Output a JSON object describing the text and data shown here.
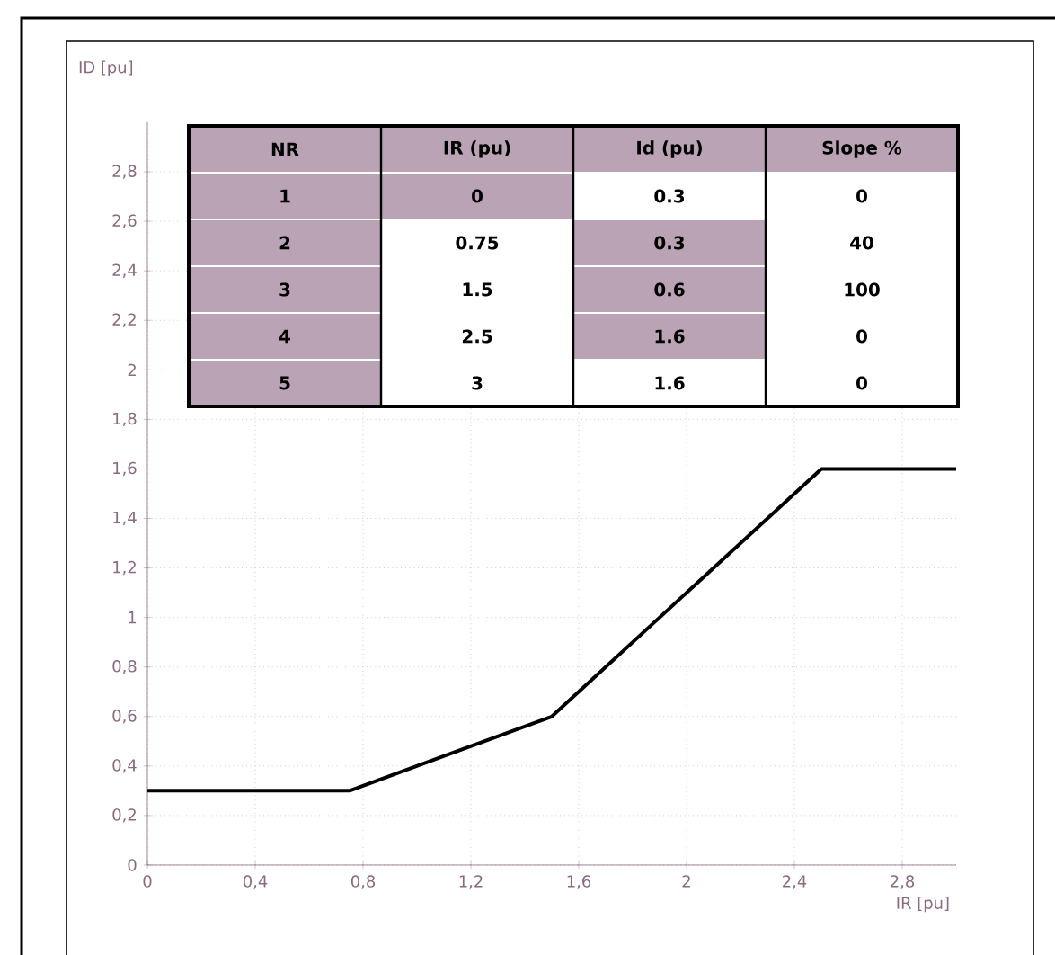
{
  "chart_data": {
    "type": "line",
    "xlabel": "IR [pu]",
    "ylabel": "ID [pu]",
    "x": [
      0,
      0.75,
      1.5,
      2.5,
      3
    ],
    "series": [
      {
        "color": "#000000",
        "values": [
          0.3,
          0.3,
          0.6,
          1.6,
          1.6
        ]
      }
    ],
    "xlim": [
      0,
      3
    ],
    "ylim": [
      0,
      3
    ],
    "xticks": [
      0,
      {
        "value": 0.4,
        "label": "0,4"
      },
      {
        "value": 0.8,
        "label": "0,8"
      },
      {
        "value": 1.2,
        "label": "1,2"
      },
      {
        "value": 1.6,
        "label": "1,6"
      },
      2,
      {
        "value": 2.4,
        "label": "2,4"
      },
      {
        "value": 2.8,
        "label": "2,8"
      }
    ],
    "yticks": [
      0,
      {
        "value": 0.2,
        "label": "0,2"
      },
      {
        "value": 0.4,
        "label": "0,4"
      },
      {
        "value": 0.6,
        "label": "0,6"
      },
      {
        "value": 0.8,
        "label": "0,8"
      },
      1,
      {
        "value": 1.2,
        "label": "1,2"
      },
      {
        "value": 1.4,
        "label": "1,4"
      },
      {
        "value": 1.6,
        "label": "1,6"
      },
      {
        "value": 1.8,
        "label": "1,8"
      },
      2,
      {
        "value": 2.2,
        "label": "2,2"
      },
      {
        "value": 2.4,
        "label": "2,4"
      },
      {
        "value": 2.6,
        "label": "2,6"
      },
      {
        "value": 2.8,
        "label": "2,8"
      }
    ],
    "grid": true,
    "marker": "none",
    "line_style": "solid",
    "annotations": [
      "NR",
      "IR (pu)",
      "Id (pu)",
      "Slope %",
      "1",
      "0",
      "0.3",
      "0",
      "2",
      "0.75",
      "0.3",
      "40",
      "3",
      "1.5",
      "0.6",
      "100",
      "4",
      "2.5",
      "1.6",
      "0",
      "5",
      "3",
      "1.6",
      "0"
    ]
  }
}
